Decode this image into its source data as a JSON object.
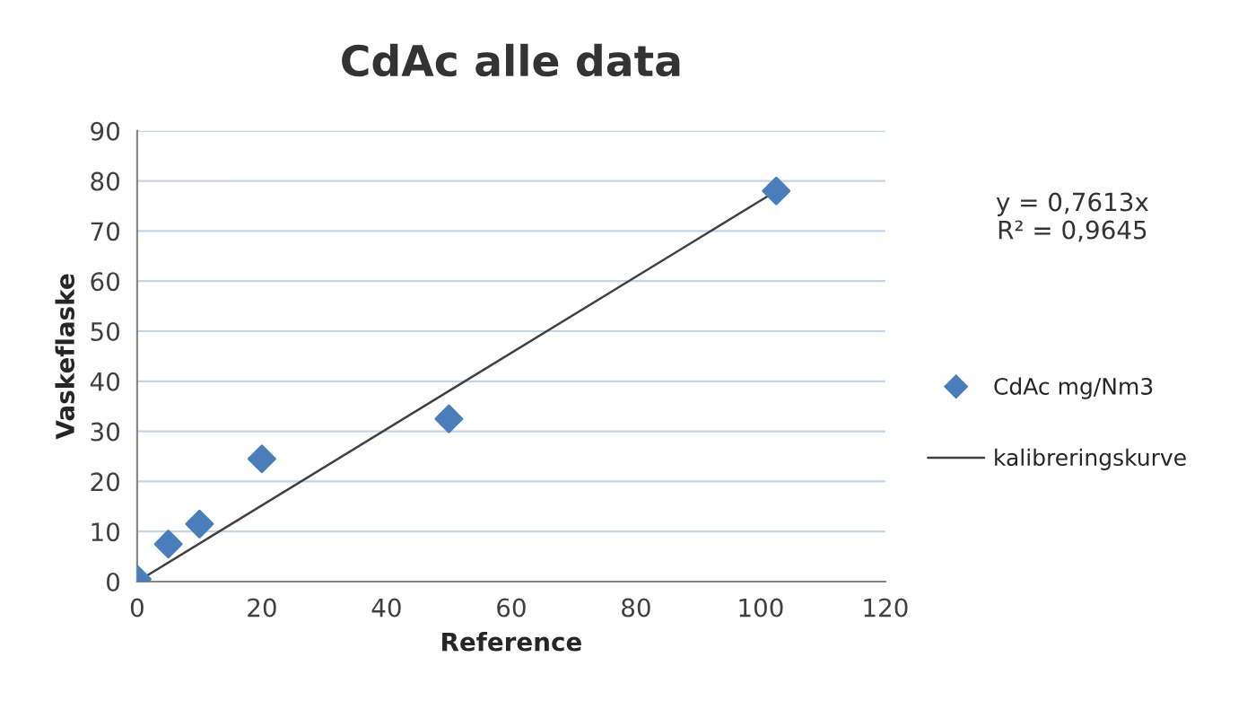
{
  "chart_data": {
    "type": "scatter",
    "title": "CdAc alle data",
    "xlabel": "Reference",
    "ylabel": "Vaskeflaske",
    "series": [
      {
        "name": "CdAc mg/Nm3",
        "color": "#4a7ebb",
        "marker": "diamond",
        "x": [
          0,
          5,
          10,
          20,
          50,
          102.5
        ],
        "values": [
          0.5,
          7.5,
          11.5,
          24.5,
          32.5,
          78
        ]
      },
      {
        "name": "kalibreringskurve",
        "type": "line",
        "color": "#404040",
        "marker": "none",
        "line_style": "solid",
        "x": [
          0,
          102.5
        ],
        "values": [
          0,
          78
        ]
      }
    ],
    "annotations": [
      "y = 0,7613x",
      "R² = 0,9645"
    ],
    "xlim": [
      0,
      120
    ],
    "xticks": [
      0,
      20,
      40,
      60,
      80,
      100,
      120
    ],
    "ylim": [
      0,
      90
    ],
    "yticks": [
      0,
      10,
      20,
      30,
      40,
      50,
      60,
      70,
      80,
      90
    ],
    "grid": "y",
    "legend": "right"
  }
}
